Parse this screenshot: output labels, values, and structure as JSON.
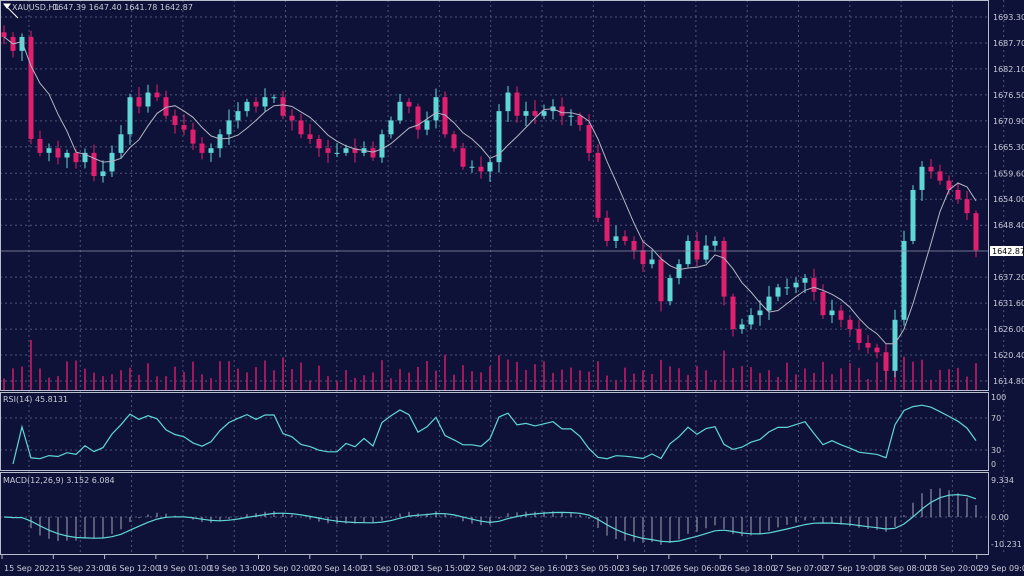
{
  "header": {
    "symbol": "XAUUSD,H1",
    "ohlc": "1647.39 1647.40 1641.78 1642.87"
  },
  "rsi_label": "RSI(14) 45.8131",
  "macd_label": "MACD(12,26,9) 3.152 6.084",
  "colors": {
    "background": "#0f1238",
    "bull": "#5fd7d7",
    "bear": "#e0206f",
    "ma": "#b4b4c4",
    "grid": "#4d5478"
  },
  "chart_data": {
    "type": "candlestick",
    "price_axis": {
      "ticks": [
        "1693.30",
        "1687.70",
        "1682.10",
        "1676.50",
        "1670.90",
        "1665.30",
        "1659.60",
        "1654.00",
        "1648.40",
        "1637.20",
        "1631.60",
        "1626.00",
        "1620.40",
        "1614.80"
      ],
      "range": [
        1614.8,
        1693.3
      ],
      "current_price": "1642.87"
    },
    "rsi_axis": {
      "ticks": [
        "100",
        "70",
        "30",
        "0"
      ]
    },
    "macd_axis": {
      "ticks": [
        "9.334",
        "0.00",
        "-10.231"
      ],
      "range": [
        -10.231,
        9.334
      ]
    },
    "time_axis": [
      "15 Sep 2022",
      "15 Sep 23:00",
      "16 Sep 12:00",
      "19 Sep 01:00",
      "19 Sep 13:00",
      "20 Sep 02:00",
      "20 Sep 14:00",
      "21 Sep 03:00",
      "21 Sep 15:00",
      "22 Sep 04:00",
      "22 Sep 16:00",
      "23 Sep 05:00",
      "23 Sep 17:00",
      "26 Sep 06:00",
      "26 Sep 18:00",
      "27 Sep 07:00",
      "27 Sep 19:00",
      "28 Sep 08:00",
      "28 Sep 20:00",
      "29 Sep 09:00"
    ],
    "grid": true,
    "close": [
      1689,
      1686,
      1689,
      1667,
      1664,
      1665,
      1663,
      1664,
      1662,
      1664,
      1659,
      1660,
      1664,
      1668,
      1676,
      1674,
      1677,
      1676,
      1672,
      1670,
      1669,
      1666,
      1664,
      1665,
      1668,
      1671,
      1673,
      1675,
      1674,
      1676,
      1676,
      1672,
      1671,
      1668,
      1667,
      1665,
      1664,
      1664,
      1665,
      1664,
      1665,
      1663,
      1668,
      1671,
      1675,
      1674,
      1669,
      1671,
      1676,
      1668,
      1665,
      1661,
      1661,
      1660,
      1662,
      1673,
      1677,
      1672,
      1673,
      1672,
      1673,
      1674,
      1672,
      1672,
      1670,
      1664,
      1650,
      1645,
      1646,
      1645,
      1643,
      1640,
      1641,
      1632,
      1637,
      1640,
      1645,
      1641,
      1644,
      1645,
      1633,
      1626,
      1627,
      1629,
      1630,
      1633,
      1635,
      1635,
      1636,
      1637,
      1634,
      1629,
      1630,
      1628,
      1626,
      1623,
      1622,
      1621,
      1617,
      1628,
      1645,
      1656,
      1661,
      1660,
      1658,
      1656,
      1654,
      1651,
      1643
    ]
  }
}
